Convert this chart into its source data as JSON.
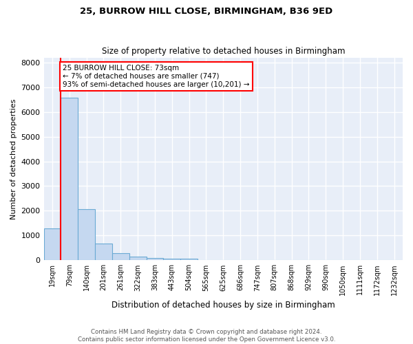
{
  "title1": "25, BURROW HILL CLOSE, BIRMINGHAM, B36 9ED",
  "title2": "Size of property relative to detached houses in Birmingham",
  "xlabel": "Distribution of detached houses by size in Birmingham",
  "ylabel": "Number of detached properties",
  "bar_labels": [
    "19sqm",
    "79sqm",
    "140sqm",
    "201sqm",
    "261sqm",
    "322sqm",
    "383sqm",
    "443sqm",
    "504sqm",
    "565sqm",
    "625sqm",
    "686sqm",
    "747sqm",
    "807sqm",
    "868sqm",
    "929sqm",
    "990sqm",
    "1050sqm",
    "1111sqm",
    "1172sqm",
    "1232sqm"
  ],
  "bar_heights": [
    1300,
    6580,
    2080,
    690,
    295,
    150,
    95,
    55,
    65,
    0,
    0,
    0,
    0,
    0,
    0,
    0,
    0,
    0,
    0,
    0,
    0
  ],
  "bar_color": "#c5d8f0",
  "bar_edge_color": "#6aaad4",
  "annotation_line1": "25 BURROW HILL CLOSE: 73sqm",
  "annotation_line2": "← 7% of detached houses are smaller (747)",
  "annotation_line3": "93% of semi-detached houses are larger (10,201) →",
  "ylim": [
    0,
    8200
  ],
  "yticks": [
    0,
    1000,
    2000,
    3000,
    4000,
    5000,
    6000,
    7000,
    8000
  ],
  "background_color": "#e8eef8",
  "grid_color": "#ffffff",
  "footer1": "Contains HM Land Registry data © Crown copyright and database right 2024.",
  "footer2": "Contains public sector information licensed under the Open Government Licence v3.0."
}
